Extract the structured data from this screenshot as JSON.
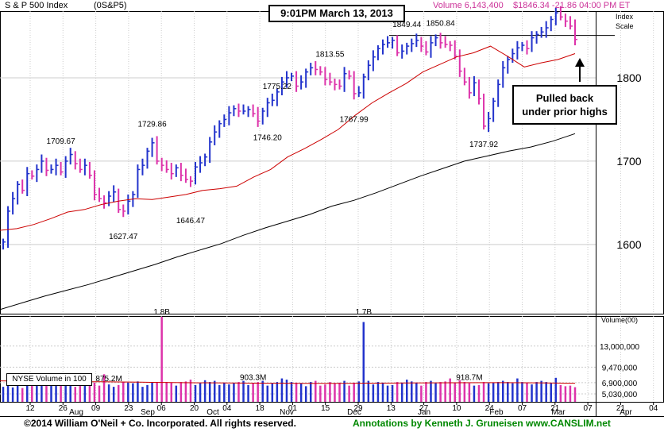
{
  "header": {
    "index_name": "S & P 500 Index",
    "symbol": "(0S&P5)",
    "volume": "Volume 6,143,400",
    "quote": "$1846.34 -21.86  04:00 PM ET"
  },
  "chart_title": "9:01PM March 13, 2013",
  "annotation": {
    "line1": "Pulled back",
    "line2": "under prior highs"
  },
  "footer": {
    "copyright": "©2014 William O'Neil + Co. Incorporated. All rights reserved.",
    "annotations": "Annotations by Kenneth J. Gruneisen www.CANSLIM.net"
  },
  "colors": {
    "up_bar": "#2233cc",
    "down_bar": "#dd33aa",
    "ma_short": "#cc0000",
    "ma_long": "#000000",
    "header_pink": "#cc3399",
    "footer_green": "#008800",
    "grid": "#cccccc"
  },
  "chart_data": [
    {
      "type": "line",
      "description_series": "daily price bars with moving averages",
      "y_axis_label": "Index Scale",
      "y_ticks": [
        1600,
        1700,
        1800
      ],
      "ylim": [
        1517,
        1880
      ],
      "x_tick_labels": [
        "12",
        "26",
        "09",
        "23",
        "06",
        "20",
        "04",
        "18",
        "01",
        "15",
        "29",
        "13",
        "27",
        "10",
        "24",
        "07",
        "21",
        "07",
        "21",
        "04"
      ],
      "month_labels": [
        "Aug",
        "Sep",
        "Oct",
        "Nov",
        "Dec",
        "Jan",
        "Feb",
        "Mar",
        "Apr"
      ],
      "price_labels": [
        "1709.67",
        "1627.47",
        "1729.86",
        "1646.47",
        "1775.22",
        "1746.20",
        "1813.55",
        "1767.99",
        "1849.44",
        "1850.84",
        "1737.92"
      ],
      "reference_line": 1850.84,
      "price_closes": [
        1603,
        1640,
        1655,
        1672,
        1665,
        1685,
        1682,
        1690,
        1700,
        1689,
        1690,
        1695,
        1687,
        1700,
        1708,
        1697,
        1690,
        1695,
        1683,
        1660,
        1655,
        1650,
        1658,
        1663,
        1642,
        1640,
        1652,
        1660,
        1690,
        1695,
        1712,
        1722,
        1700,
        1695,
        1690,
        1685,
        1692,
        1683,
        1678,
        1676,
        1693,
        1698,
        1705,
        1723,
        1735,
        1745,
        1750,
        1758,
        1763,
        1760,
        1760,
        1762,
        1757,
        1748,
        1760,
        1770,
        1773,
        1783,
        1795,
        1800,
        1802,
        1790,
        1795,
        1807,
        1812,
        1810,
        1807,
        1798,
        1795,
        1792,
        1790,
        1805,
        1802,
        1781,
        1782,
        1801,
        1815,
        1825,
        1835,
        1840,
        1842,
        1845,
        1830,
        1832,
        1838,
        1841,
        1845,
        1838,
        1831,
        1842,
        1848,
        1842,
        1840,
        1839,
        1826,
        1808,
        1795,
        1782,
        1794,
        1775,
        1742,
        1751,
        1772,
        1792,
        1812,
        1822,
        1829,
        1836,
        1839,
        1835,
        1848,
        1852,
        1855,
        1860,
        1870,
        1878,
        1873,
        1868,
        1862,
        1846
      ],
      "sma_50_values": [
        1617,
        1619,
        1624,
        1631,
        1639,
        1642,
        1648,
        1652,
        1655,
        1654,
        1657,
        1660,
        1665,
        1667,
        1670,
        1681,
        1690,
        1705,
        1715,
        1726,
        1738,
        1755,
        1770,
        1782,
        1793,
        1807,
        1816,
        1825,
        1830,
        1838,
        1826,
        1813,
        1818,
        1822,
        1829
      ],
      "sma_200_values": [
        1522,
        1530,
        1538,
        1545,
        1552,
        1560,
        1568,
        1576,
        1585,
        1593,
        1601,
        1611,
        1620,
        1628,
        1636,
        1646,
        1653,
        1662,
        1672,
        1682,
        1691,
        1700,
        1706,
        1712,
        1717,
        1724,
        1733
      ]
    },
    {
      "type": "bar",
      "label": "NYSE Volume in 100",
      "y_label": "Volume(00)",
      "y_ticks": [
        "13,000,000",
        "9,470,000",
        "6,900,000",
        "5,030,000"
      ],
      "y_tick_values": [
        13000000,
        9470000,
        6900000,
        5030000
      ],
      "ylim": [
        3700000,
        18000000
      ],
      "volume_labels": [
        "875.2M",
        "1.8B",
        "903.3M",
        "1.7B",
        "918.7M"
      ],
      "volume_values_millions": [
        620,
        690,
        610,
        640,
        600,
        650,
        670,
        650,
        660,
        700,
        640,
        810,
        760,
        720,
        640,
        620,
        700,
        680,
        760,
        690,
        640,
        830,
        660,
        620,
        650,
        700,
        690,
        680,
        710,
        620,
        650,
        690,
        700,
        1800,
        700,
        690,
        640,
        700,
        710,
        740,
        650,
        680,
        730,
        700,
        720,
        650,
        690,
        660,
        680,
        700,
        720,
        650,
        680,
        700,
        720,
        640,
        680,
        700,
        760,
        740,
        700,
        690,
        680,
        630,
        700,
        720,
        640,
        660,
        700,
        680,
        690,
        720,
        640,
        690,
        710,
        1700,
        720,
        660,
        700,
        690,
        640,
        650,
        700,
        690,
        740,
        710,
        690,
        640,
        700,
        720,
        680,
        700,
        710,
        760,
        690,
        730,
        700,
        680,
        640,
        650,
        700,
        680,
        690,
        700,
        720,
        700,
        680,
        760,
        700,
        690,
        660,
        700,
        720,
        700,
        680,
        770,
        650,
        630,
        640,
        614
      ],
      "volume_ma_millions": 680
    }
  ]
}
